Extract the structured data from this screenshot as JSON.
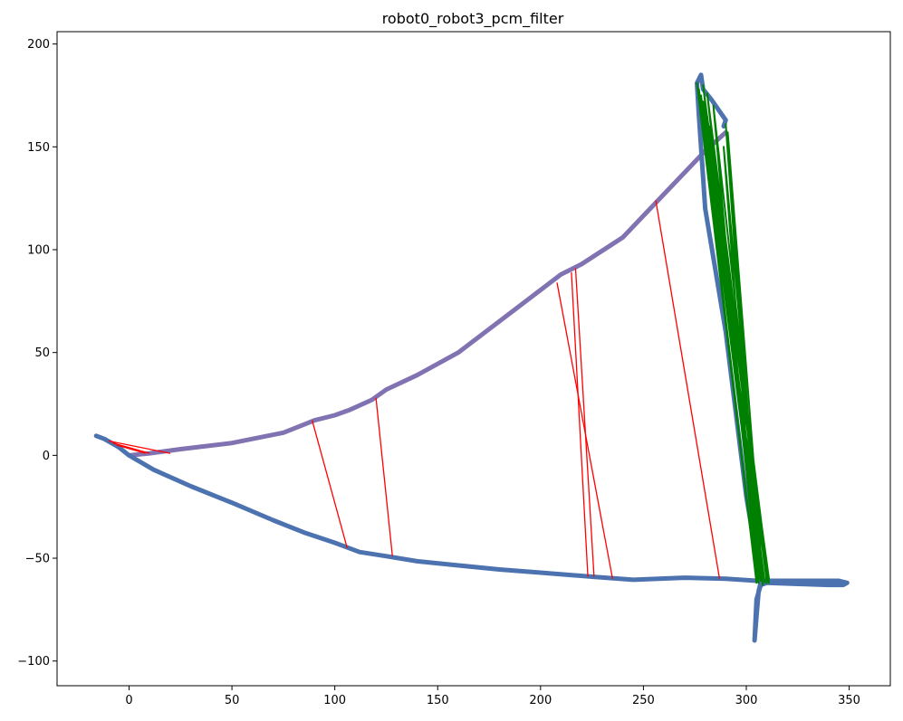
{
  "chart_data": {
    "type": "line",
    "title": "robot0_robot3_pcm_filter",
    "xlabel": "",
    "ylabel": "",
    "xlim": [
      -35,
      370
    ],
    "ylim": [
      -112,
      206
    ],
    "x_ticks": [
      0,
      50,
      100,
      150,
      200,
      250,
      300,
      350
    ],
    "y_ticks": [
      -100,
      -50,
      0,
      50,
      100,
      150,
      200
    ],
    "grid": false,
    "legend": "none",
    "series": [
      {
        "color": "#8172b2",
        "points": [
          [
            0,
            0
          ],
          [
            10,
            1
          ],
          [
            25,
            3
          ],
          [
            50,
            6
          ],
          [
            75,
            11
          ],
          [
            85,
            15
          ],
          [
            90,
            17
          ],
          [
            100,
            19.5
          ],
          [
            107,
            22
          ],
          [
            118,
            27
          ],
          [
            125,
            32
          ],
          [
            140,
            39
          ],
          [
            160,
            50
          ],
          [
            185,
            69
          ],
          [
            210,
            88
          ],
          [
            220,
            93
          ],
          [
            240,
            106
          ],
          [
            260,
            127
          ],
          [
            280,
            148
          ],
          [
            290,
            157
          ]
        ]
      },
      {
        "color": "#4c72b0",
        "points": [
          [
            -16,
            9.5
          ],
          [
            -12,
            8
          ],
          [
            -5,
            4
          ],
          [
            0,
            0
          ],
          [
            12,
            -7
          ],
          [
            30,
            -15
          ],
          [
            50,
            -23
          ],
          [
            70,
            -31.5
          ],
          [
            85,
            -37.5
          ],
          [
            100,
            -42.5
          ],
          [
            112,
            -47
          ],
          [
            125,
            -49
          ],
          [
            140,
            -51.5
          ],
          [
            160,
            -53.5
          ],
          [
            180,
            -55.5
          ],
          [
            200,
            -57
          ],
          [
            225,
            -59
          ],
          [
            245,
            -60.5
          ],
          [
            270,
            -59.5
          ],
          [
            290,
            -60
          ],
          [
            305,
            -61
          ],
          [
            325,
            -61
          ],
          [
            345,
            -61
          ],
          [
            349,
            -62
          ],
          [
            347,
            -63
          ],
          [
            340,
            -63
          ],
          [
            325,
            -62.5
          ],
          [
            310,
            -62
          ],
          [
            307,
            -63
          ],
          [
            305,
            -70
          ],
          [
            304,
            -90
          ],
          [
            305,
            -78
          ],
          [
            306,
            -66
          ],
          [
            307,
            -62
          ],
          [
            306,
            -55
          ],
          [
            300,
            -20
          ],
          [
            290,
            60
          ],
          [
            280,
            120
          ],
          [
            277,
            165
          ],
          [
            276,
            181
          ],
          [
            278,
            185
          ],
          [
            279,
            178
          ],
          [
            283,
            173
          ],
          [
            290,
            163
          ],
          [
            289,
            160
          ]
        ]
      },
      {
        "color": "#008000",
        "points": [
          [
            276,
            181
          ],
          [
            305,
            -62
          ],
          [
            277,
            178
          ],
          [
            307,
            -60
          ],
          [
            278,
            175
          ],
          [
            309,
            -62
          ],
          [
            279,
            172
          ],
          [
            311,
            -60
          ],
          [
            280,
            168
          ],
          [
            308,
            -63
          ],
          [
            281,
            165
          ],
          [
            310,
            -61
          ],
          [
            282,
            160
          ],
          [
            306,
            -62
          ],
          [
            283,
            156
          ],
          [
            311,
            -62
          ],
          [
            281,
            176
          ],
          [
            307,
            -61
          ],
          [
            290,
            161
          ],
          [
            306,
            -62
          ],
          [
            291,
            157
          ],
          [
            308,
            -60
          ],
          [
            289,
            150
          ],
          [
            305,
            -61
          ],
          [
            284,
            170
          ],
          [
            310,
            -62
          ],
          [
            279,
            180
          ],
          [
            306,
            -60
          ]
        ]
      }
    ],
    "match_lines": {
      "color": "#ff0000",
      "segments": [
        [
          [
            89,
            17
          ],
          [
            106,
            -45
          ]
        ],
        [
          [
            120,
            28
          ],
          [
            128,
            -49
          ]
        ],
        [
          [
            208,
            84
          ],
          [
            235,
            -60
          ]
        ],
        [
          [
            215,
            89
          ],
          [
            223,
            -59
          ]
        ],
        [
          [
            217,
            91
          ],
          [
            226,
            -59
          ]
        ],
        [
          [
            256,
            124
          ],
          [
            287,
            -60
          ]
        ],
        [
          [
            -10,
            7
          ],
          [
            20,
            1
          ]
        ],
        [
          [
            -8,
            6
          ],
          [
            10,
            1
          ]
        ],
        [
          [
            -6,
            5
          ],
          [
            8,
            1
          ]
        ]
      ]
    }
  }
}
